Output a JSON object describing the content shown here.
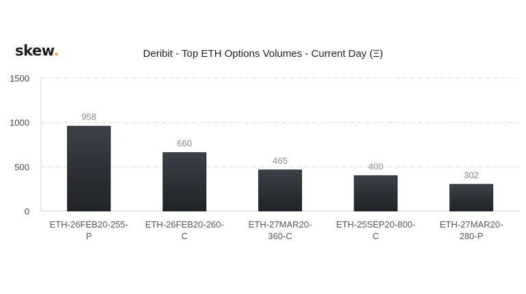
{
  "brand": {
    "name": "skew",
    "dot": "."
  },
  "chart_data": {
    "type": "bar",
    "title": "Deribit - Top ETH Options Volumes - Current Day (Ξ)",
    "categories": [
      [
        "ETH-26FEB20-255-",
        "P"
      ],
      [
        "ETH-26FEB20-260-",
        "C"
      ],
      [
        "ETH-27MAR20-",
        "360-C"
      ],
      [
        "ETH-25SEP20-800-",
        "C"
      ],
      [
        "ETH-27MAR20-",
        "280-P"
      ]
    ],
    "values": [
      958,
      660,
      465,
      400,
      302
    ],
    "ylim": [
      0,
      1500
    ],
    "yticks": [
      0,
      500,
      1000,
      1500
    ],
    "grid": true,
    "legend": "none",
    "bar_color_top": "#3b4048",
    "bar_color_bottom": "#202327"
  }
}
